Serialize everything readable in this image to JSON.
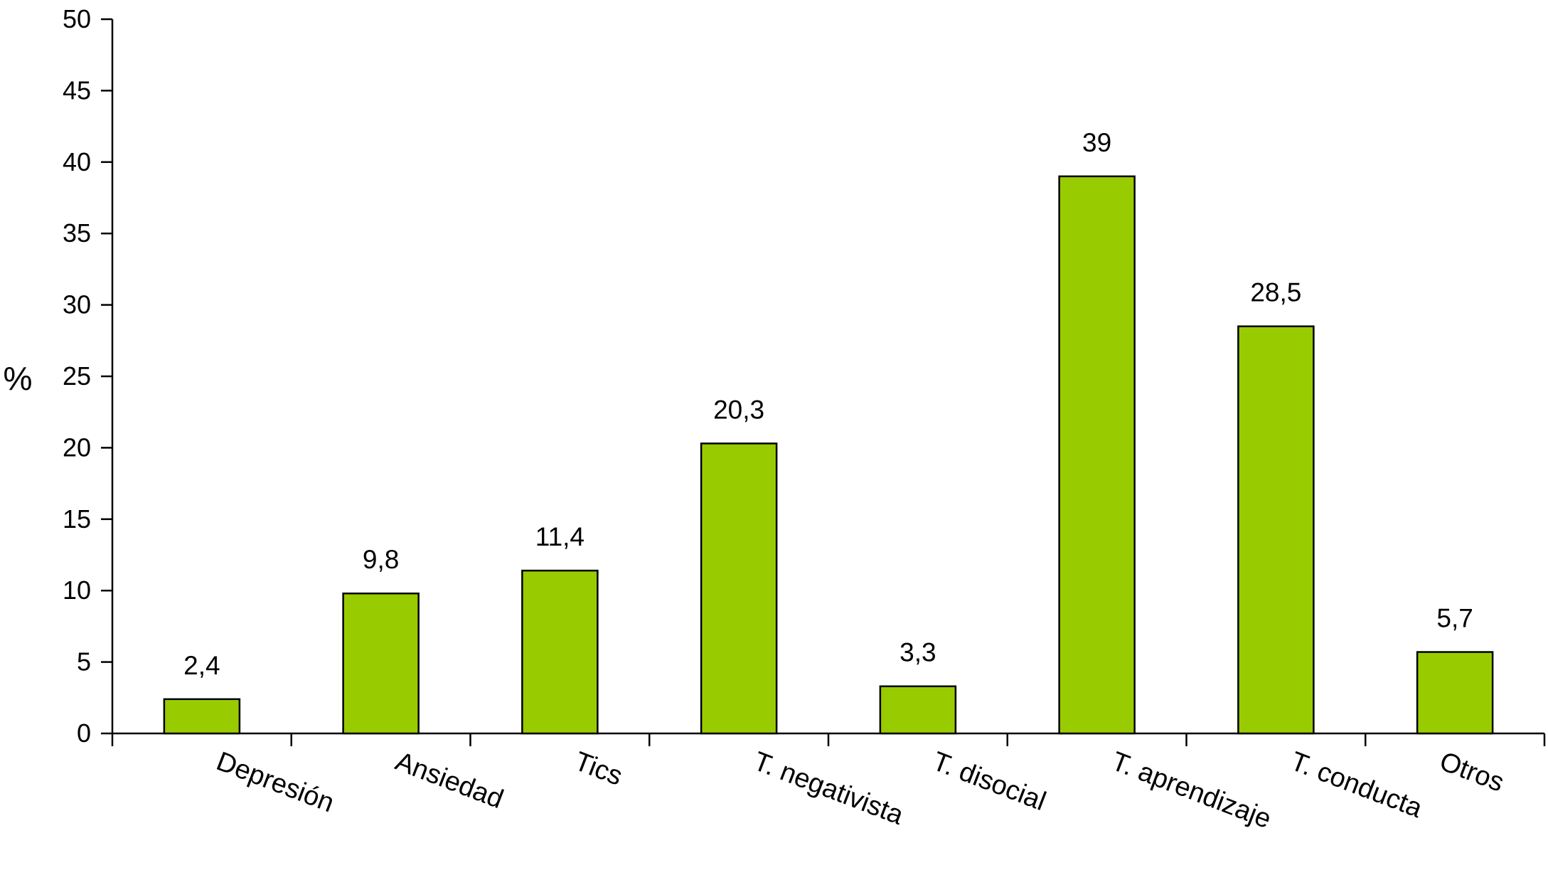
{
  "chart_data": {
    "type": "bar",
    "categories": [
      "Depresión",
      "Ansiedad",
      "Tics",
      "T. negativista",
      "T. disocial",
      "T. aprendizaje",
      "T. conducta",
      "Otros"
    ],
    "values": [
      2.4,
      9.8,
      11.4,
      20.3,
      3.3,
      39,
      28.5,
      5.7
    ],
    "value_labels": [
      "2,4",
      "9,8",
      "11,4",
      "20,3",
      "3,3",
      "39",
      "28,5",
      "5,7"
    ],
    "ylabel": "%",
    "ylim": [
      0,
      50
    ],
    "yticks": [
      "0",
      "5",
      "10",
      "15",
      "20",
      "25",
      "30",
      "35",
      "40",
      "45",
      "50"
    ],
    "bar_color": "#99cc00",
    "grid": false,
    "legend": "none"
  }
}
